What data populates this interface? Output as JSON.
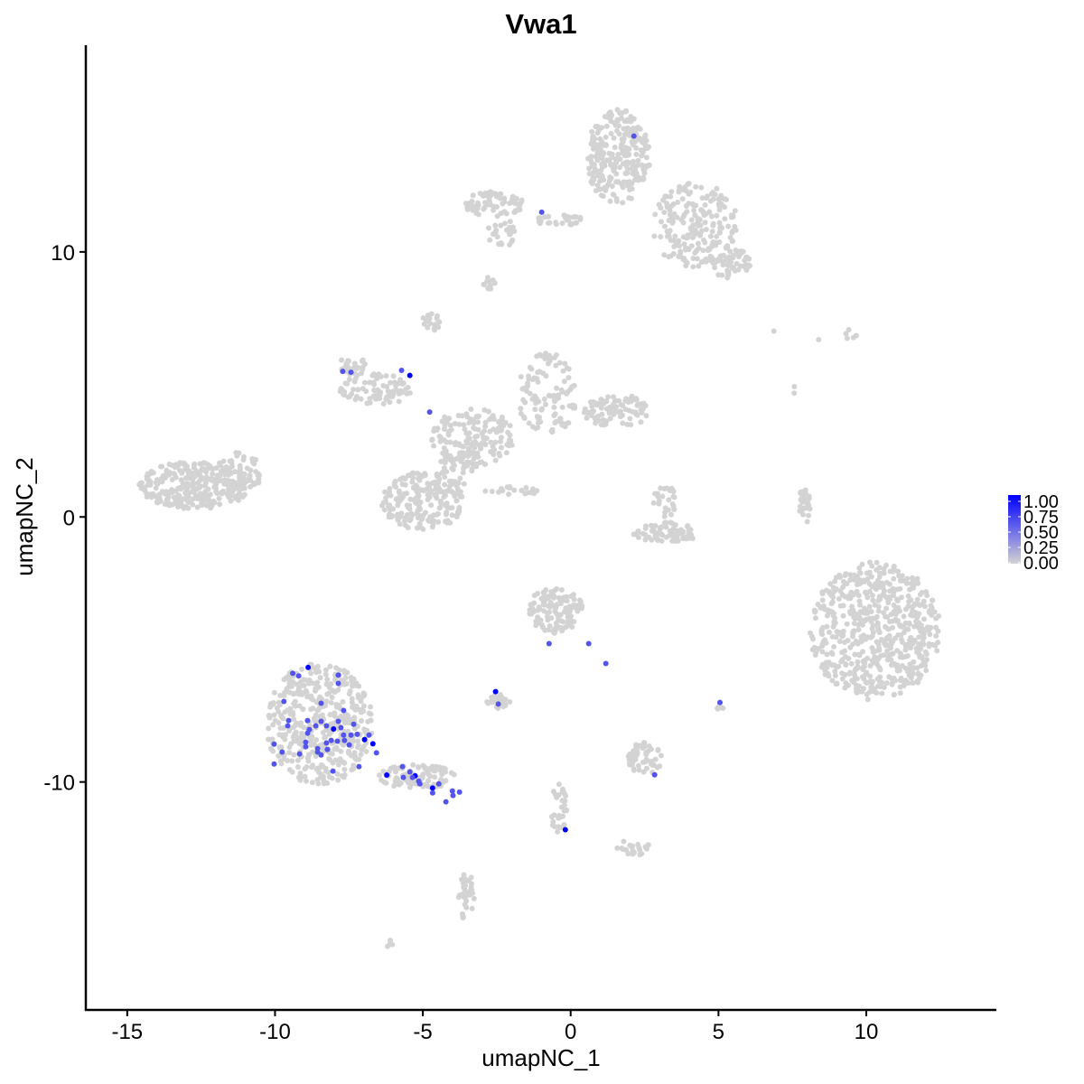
{
  "chart_data": {
    "type": "scatter",
    "title": "Vwa1",
    "xlabel": "umapNC_1",
    "ylabel": "umapNC_2",
    "xlim": [
      -16.4,
      14.4
    ],
    "ylim": [
      -18.6,
      17.8
    ],
    "xticks": [
      -15,
      -10,
      -5,
      0,
      5,
      10
    ],
    "yticks": [
      -10,
      0,
      10
    ],
    "grid": false,
    "colors": {
      "low": "#d3d3d3",
      "high": "#0000ff"
    },
    "legend": {
      "position": "right",
      "ticks": [
        "1.00",
        "0.75",
        "0.50",
        "0.25",
        "0.00"
      ],
      "range": [
        0,
        1
      ]
    },
    "background_cells_expression": 0,
    "background_cell_regions": [
      {
        "cx": -12.7,
        "cy": 1.2,
        "rx": 1.9,
        "ry": 0.9,
        "n": 300
      },
      {
        "cx": -11.2,
        "cy": 1.7,
        "rx": 0.8,
        "ry": 0.8,
        "n": 60
      },
      {
        "cx": 1.6,
        "cy": 13.6,
        "rx": 1.1,
        "ry": 1.8,
        "n": 250
      },
      {
        "cx": 4.2,
        "cy": 11.0,
        "rx": 1.5,
        "ry": 1.6,
        "n": 200
      },
      {
        "cx": 5.4,
        "cy": 9.6,
        "rx": 0.7,
        "ry": 0.6,
        "n": 60
      },
      {
        "cx": -2.6,
        "cy": 11.8,
        "rx": 1.0,
        "ry": 0.5,
        "n": 70
      },
      {
        "cx": -2.3,
        "cy": 10.7,
        "rx": 0.5,
        "ry": 0.6,
        "n": 25
      },
      {
        "cx": -0.4,
        "cy": 11.2,
        "rx": 0.9,
        "ry": 0.2,
        "n": 30
      },
      {
        "cx": -2.8,
        "cy": 8.8,
        "rx": 0.3,
        "ry": 0.3,
        "n": 12
      },
      {
        "cx": -3.3,
        "cy": 3.0,
        "rx": 1.4,
        "ry": 1.1,
        "n": 150
      },
      {
        "cx": -6.6,
        "cy": 4.8,
        "rx": 1.2,
        "ry": 0.6,
        "n": 80
      },
      {
        "cx": -7.4,
        "cy": 5.7,
        "rx": 0.5,
        "ry": 0.4,
        "n": 25
      },
      {
        "cx": -4.7,
        "cy": 7.4,
        "rx": 0.3,
        "ry": 0.4,
        "n": 20
      },
      {
        "cx": -0.8,
        "cy": 4.6,
        "rx": 1.0,
        "ry": 1.6,
        "n": 110
      },
      {
        "cx": 1.6,
        "cy": 4.0,
        "rx": 1.2,
        "ry": 0.6,
        "n": 90
      },
      {
        "cx": -5.0,
        "cy": 0.6,
        "rx": 1.4,
        "ry": 1.1,
        "n": 200
      },
      {
        "cx": -3.8,
        "cy": 2.0,
        "rx": 0.6,
        "ry": 0.8,
        "n": 40
      },
      {
        "cx": -1.9,
        "cy": 1.0,
        "rx": 1.0,
        "ry": 0.15,
        "n": 20
      },
      {
        "cx": 3.2,
        "cy": -0.6,
        "rx": 1.1,
        "ry": 0.4,
        "n": 80
      },
      {
        "cx": 3.2,
        "cy": 0.6,
        "rx": 0.4,
        "ry": 0.6,
        "n": 25
      },
      {
        "cx": 7.9,
        "cy": 0.4,
        "rx": 0.2,
        "ry": 0.7,
        "n": 25
      },
      {
        "cx": 10.3,
        "cy": -4.3,
        "rx": 2.2,
        "ry": 2.6,
        "n": 600
      },
      {
        "cx": -0.5,
        "cy": -3.5,
        "rx": 0.9,
        "ry": 0.9,
        "n": 120
      },
      {
        "cx": -8.5,
        "cy": -7.8,
        "rx": 1.8,
        "ry": 2.3,
        "n": 450
      },
      {
        "cx": -5.2,
        "cy": -9.8,
        "rx": 1.3,
        "ry": 0.45,
        "n": 90
      },
      {
        "cx": -2.4,
        "cy": -7.0,
        "rx": 0.45,
        "ry": 0.3,
        "n": 25
      },
      {
        "cx": 2.5,
        "cy": -9.1,
        "rx": 0.6,
        "ry": 0.6,
        "n": 50
      },
      {
        "cx": -0.4,
        "cy": -11.0,
        "rx": 0.3,
        "ry": 1.0,
        "n": 30
      },
      {
        "cx": 2.1,
        "cy": -12.5,
        "rx": 0.6,
        "ry": 0.3,
        "n": 20
      },
      {
        "cx": -3.5,
        "cy": -14.4,
        "rx": 0.3,
        "ry": 1.0,
        "n": 35
      },
      {
        "cx": -6.1,
        "cy": -16.1,
        "rx": 0.15,
        "ry": 0.15,
        "n": 4
      },
      {
        "cx": 5.0,
        "cy": -7.3,
        "rx": 0.2,
        "ry": 0.2,
        "n": 6
      },
      {
        "cx": 9.4,
        "cy": 6.9,
        "rx": 0.3,
        "ry": 0.2,
        "n": 5
      },
      {
        "cx": 6.9,
        "cy": 7.0,
        "rx": 0.05,
        "ry": 0.05,
        "n": 1
      },
      {
        "cx": 8.4,
        "cy": 6.7,
        "rx": 0.05,
        "ry": 0.05,
        "n": 1
      },
      {
        "cx": 7.6,
        "cy": 4.8,
        "rx": 0.1,
        "ry": 0.2,
        "n": 2
      }
    ],
    "expressed_points": [
      {
        "x": -8.88,
        "y": -5.68,
        "v": 1.0
      },
      {
        "x": -8.02,
        "y": -8.0,
        "v": 1.0
      },
      {
        "x": -6.97,
        "y": -8.4,
        "v": 1.0
      },
      {
        "x": -6.69,
        "y": -8.56,
        "v": 1.0
      },
      {
        "x": -6.22,
        "y": -9.74,
        "v": 1.0
      },
      {
        "x": -5.26,
        "y": -9.77,
        "v": 1.0
      },
      {
        "x": -4.67,
        "y": -10.23,
        "v": 1.0
      },
      {
        "x": -5.44,
        "y": 5.34,
        "v": 1.0
      },
      {
        "x": -2.54,
        "y": -6.59,
        "v": 1.0
      },
      {
        "x": -0.18,
        "y": -11.8,
        "v": 1.0
      },
      {
        "x": -9.4,
        "y": -5.9,
        "v": 0.6
      },
      {
        "x": -9.2,
        "y": -6.0,
        "v": 0.6
      },
      {
        "x": -7.86,
        "y": -5.97,
        "v": 0.6
      },
      {
        "x": -7.86,
        "y": -6.28,
        "v": 0.6
      },
      {
        "x": -9.7,
        "y": -6.96,
        "v": 0.6
      },
      {
        "x": -8.44,
        "y": -7.03,
        "v": 0.6
      },
      {
        "x": -7.68,
        "y": -7.3,
        "v": 0.6
      },
      {
        "x": -9.54,
        "y": -7.68,
        "v": 0.6
      },
      {
        "x": -8.9,
        "y": -7.68,
        "v": 0.6
      },
      {
        "x": -8.44,
        "y": -7.71,
        "v": 0.6
      },
      {
        "x": -7.86,
        "y": -7.71,
        "v": 0.6
      },
      {
        "x": -7.34,
        "y": -7.82,
        "v": 0.6
      },
      {
        "x": -9.57,
        "y": -7.88,
        "v": 0.6
      },
      {
        "x": -8.62,
        "y": -7.88,
        "v": 0.6
      },
      {
        "x": -8.26,
        "y": -7.88,
        "v": 0.6
      },
      {
        "x": -7.77,
        "y": -7.95,
        "v": 0.6
      },
      {
        "x": -8.84,
        "y": -8.02,
        "v": 0.6
      },
      {
        "x": -8.9,
        "y": -8.16,
        "v": 0.6
      },
      {
        "x": -7.68,
        "y": -8.23,
        "v": 0.6
      },
      {
        "x": -7.43,
        "y": -8.23,
        "v": 0.6
      },
      {
        "x": -7.22,
        "y": -8.2,
        "v": 0.6
      },
      {
        "x": -6.82,
        "y": -8.23,
        "v": 0.6
      },
      {
        "x": -7.65,
        "y": -8.43,
        "v": 0.6
      },
      {
        "x": -8.1,
        "y": -8.43,
        "v": 0.6
      },
      {
        "x": -8.26,
        "y": -8.53,
        "v": 0.6
      },
      {
        "x": -7.89,
        "y": -8.46,
        "v": 0.6
      },
      {
        "x": -8.96,
        "y": -8.5,
        "v": 0.6
      },
      {
        "x": -8.96,
        "y": -8.67,
        "v": 0.6
      },
      {
        "x": -10.03,
        "y": -8.57,
        "v": 0.6
      },
      {
        "x": -7.49,
        "y": -8.6,
        "v": 0.6
      },
      {
        "x": -8.56,
        "y": -8.74,
        "v": 0.6
      },
      {
        "x": -8.23,
        "y": -8.77,
        "v": 0.6
      },
      {
        "x": -9.76,
        "y": -8.87,
        "v": 0.6
      },
      {
        "x": -8.56,
        "y": -8.87,
        "v": 0.6
      },
      {
        "x": -9.17,
        "y": -8.94,
        "v": 0.6
      },
      {
        "x": -8.44,
        "y": -8.98,
        "v": 0.6
      },
      {
        "x": -6.57,
        "y": -8.9,
        "v": 0.6
      },
      {
        "x": -10.03,
        "y": -9.32,
        "v": 0.6
      },
      {
        "x": -7.16,
        "y": -9.42,
        "v": 0.6
      },
      {
        "x": -8.04,
        "y": -9.59,
        "v": 0.6
      },
      {
        "x": -5.69,
        "y": -9.42,
        "v": 0.6
      },
      {
        "x": -5.44,
        "y": -9.62,
        "v": 0.6
      },
      {
        "x": -5.66,
        "y": -9.83,
        "v": 0.6
      },
      {
        "x": -5.35,
        "y": -9.83,
        "v": 0.6
      },
      {
        "x": -5.14,
        "y": -9.97,
        "v": 0.6
      },
      {
        "x": -5.1,
        "y": -10.07,
        "v": 0.6
      },
      {
        "x": -4.46,
        "y": -10.07,
        "v": 0.6
      },
      {
        "x": -4.67,
        "y": -10.41,
        "v": 0.6
      },
      {
        "x": -4.0,
        "y": -10.34,
        "v": 0.6
      },
      {
        "x": -3.76,
        "y": -10.38,
        "v": 0.6
      },
      {
        "x": -3.98,
        "y": -10.51,
        "v": 0.6
      },
      {
        "x": -4.22,
        "y": -10.75,
        "v": 0.6
      },
      {
        "x": 2.14,
        "y": 14.37,
        "v": 0.6
      },
      {
        "x": -0.98,
        "y": 11.5,
        "v": 0.6
      },
      {
        "x": -7.71,
        "y": 5.49,
        "v": 0.6
      },
      {
        "x": -7.43,
        "y": 5.46,
        "v": 0.6
      },
      {
        "x": -5.72,
        "y": 5.53,
        "v": 0.6
      },
      {
        "x": -4.77,
        "y": 3.96,
        "v": 0.6
      },
      {
        "x": -0.73,
        "y": -4.78,
        "v": 0.6
      },
      {
        "x": 0.61,
        "y": -4.78,
        "v": 0.6
      },
      {
        "x": 1.19,
        "y": -5.53,
        "v": 0.6
      },
      {
        "x": -2.45,
        "y": -7.06,
        "v": 0.6
      },
      {
        "x": 5.05,
        "y": -7.0,
        "v": 0.6
      },
      {
        "x": 2.84,
        "y": -9.73,
        "v": 0.6
      }
    ]
  }
}
